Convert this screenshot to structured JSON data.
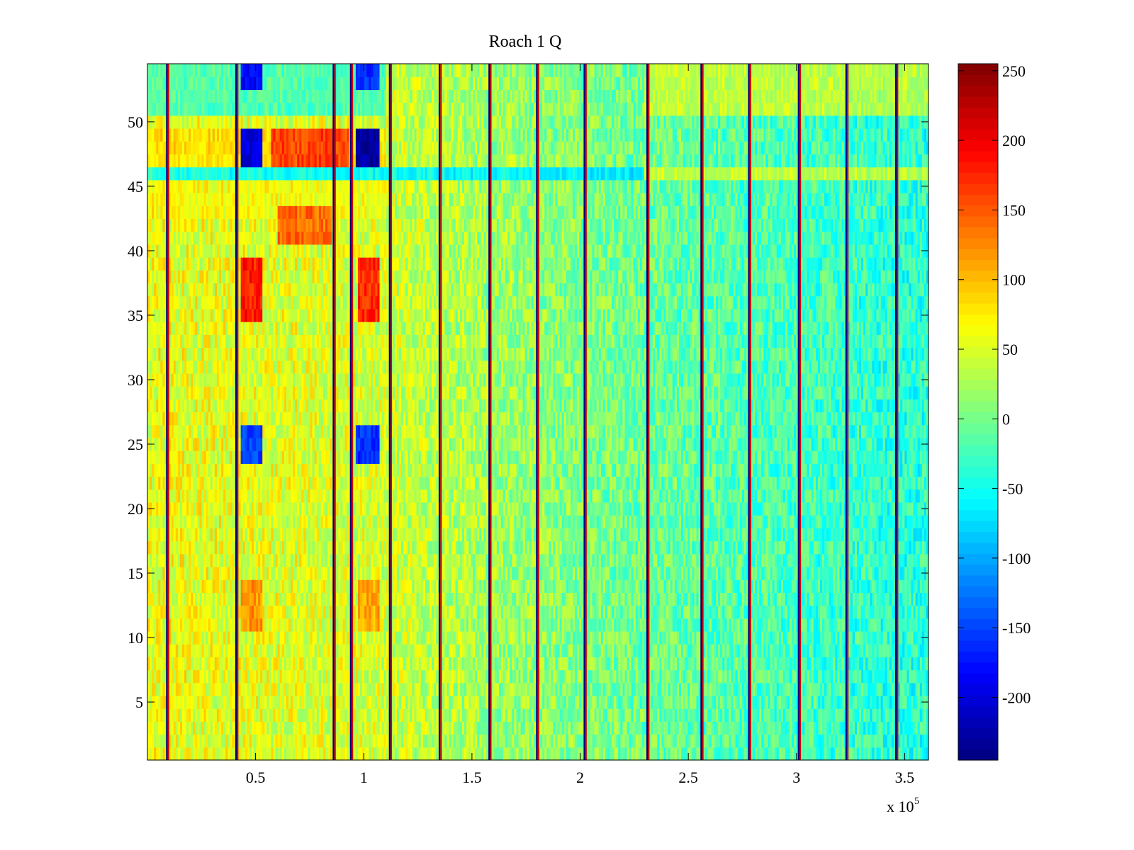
{
  "chart_data": {
    "type": "heatmap",
    "title": "Roach 1 Q",
    "xlabel": "",
    "ylabel": "",
    "x_multiplier_label": "x 10",
    "x_multiplier_exponent": "5",
    "xlim": [
      0,
      3.61
    ],
    "ylim": [
      0.5,
      54.5
    ],
    "x_ticks": [
      0.5,
      1,
      1.5,
      2,
      2.5,
      3,
      3.5
    ],
    "x_tick_labels": [
      "0.5",
      "1",
      "1.5",
      "2",
      "2.5",
      "3",
      "3.5"
    ],
    "y_ticks": [
      5,
      10,
      15,
      20,
      25,
      30,
      35,
      40,
      45,
      50
    ],
    "y_tick_labels": [
      "5",
      "10",
      "15",
      "20",
      "25",
      "30",
      "35",
      "40",
      "45",
      "50"
    ],
    "colormap": "jet",
    "clim": [
      -245,
      255
    ],
    "colorbar_ticks": [
      250,
      200,
      150,
      100,
      50,
      0,
      -50,
      -100,
      -150,
      -200
    ],
    "colorbar_tick_labels": [
      "250",
      "200",
      "150",
      "100",
      "50",
      "0",
      "-50",
      "-100",
      "-150",
      "-200"
    ],
    "rows": 54,
    "columns": 360,
    "spike_columns_x": [
      0.09,
      0.41,
      0.86,
      0.94,
      1.12,
      1.35,
      1.58,
      1.8,
      2.02,
      2.31,
      2.56,
      2.78,
      3.01,
      3.23,
      3.46
    ],
    "baseline_trend": [
      {
        "x": 0.0,
        "value": 60
      },
      {
        "x": 1.0,
        "value": 50
      },
      {
        "x": 1.6,
        "value": 20
      },
      {
        "x": 2.3,
        "value": -5
      },
      {
        "x": 3.61,
        "value": -40
      }
    ],
    "row_offsets": [
      {
        "rows": [
          47,
          48,
          49
        ],
        "x_range": [
          0,
          1.1
        ],
        "value": 90
      },
      {
        "rows": [
          43,
          44,
          45
        ],
        "x_range": [
          0,
          1.1
        ],
        "value": 70
      },
      {
        "rows": [
          46
        ],
        "x_range": [
          0,
          2.3
        ],
        "value": -90
      },
      {
        "rows": [
          46
        ],
        "x_range": [
          2.3,
          3.61
        ],
        "value": 60
      },
      {
        "rows": [
          51,
          52,
          53,
          54
        ],
        "x_range": [
          0,
          1.1
        ],
        "value": -50
      },
      {
        "rows": [
          51,
          52,
          53,
          54
        ],
        "x_range": [
          2.3,
          3.61
        ],
        "value": 60
      }
    ],
    "hot_patches": [
      {
        "x_range": [
          0.43,
          0.53
        ],
        "y_range": [
          35,
          39
        ],
        "value": 180
      },
      {
        "x_range": [
          0.97,
          1.07
        ],
        "y_range": [
          35,
          39
        ],
        "value": 170
      },
      {
        "x_range": [
          0.57,
          0.93
        ],
        "y_range": [
          47,
          49
        ],
        "value": 160
      },
      {
        "x_range": [
          0.6,
          0.85
        ],
        "y_range": [
          41,
          43
        ],
        "value": 140
      },
      {
        "x_range": [
          0.43,
          0.53
        ],
        "y_range": [
          11,
          14
        ],
        "value": 120
      },
      {
        "x_range": [
          0.97,
          1.07
        ],
        "y_range": [
          11,
          14
        ],
        "value": 110
      }
    ],
    "cold_patches": [
      {
        "x_range": [
          0.43,
          0.53
        ],
        "y_range": [
          46.5,
          49
        ],
        "value": -200
      },
      {
        "x_range": [
          0.96,
          1.07
        ],
        "y_range": [
          46.5,
          49
        ],
        "value": -230
      },
      {
        "x_range": [
          0.43,
          0.53
        ],
        "y_range": [
          53,
          54.5
        ],
        "value": -180
      },
      {
        "x_range": [
          0.96,
          1.07
        ],
        "y_range": [
          53,
          54.5
        ],
        "value": -160
      },
      {
        "x_range": [
          0.43,
          0.53
        ],
        "y_range": [
          24,
          26
        ],
        "value": -150
      },
      {
        "x_range": [
          0.96,
          1.07
        ],
        "y_range": [
          24,
          26
        ],
        "value": -160
      }
    ]
  }
}
